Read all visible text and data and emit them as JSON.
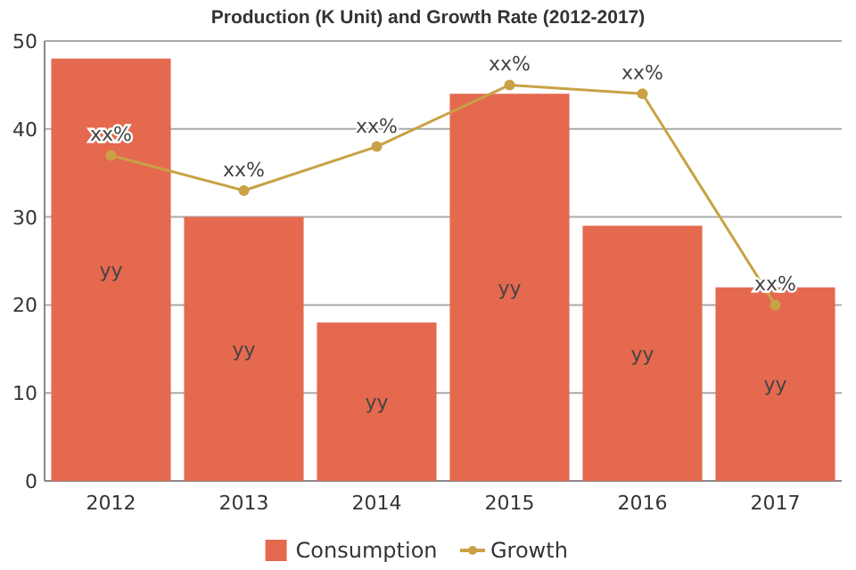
{
  "chart_data": {
    "type": "bar",
    "title": "Production (K Unit) and Growth Rate (2012-2017)",
    "categories": [
      "2012",
      "2013",
      "2014",
      "2015",
      "2016",
      "2017"
    ],
    "series": [
      {
        "name": "Consumption",
        "color": "#e5694f",
        "values": [
          48,
          30,
          18,
          44,
          29,
          22
        ],
        "value_labels": [
          "yy",
          "yy",
          "yy",
          "yy",
          "yy",
          "yy"
        ]
      },
      {
        "name": "Growth",
        "type": "line",
        "color": "#c9a245",
        "values": [
          37,
          33,
          38,
          45,
          44,
          20
        ],
        "value_labels": [
          "xx%",
          "xx%",
          "xx%",
          "xx%",
          "xx%",
          "xx%"
        ]
      }
    ],
    "ylim": [
      0,
      50
    ],
    "yticks": [
      0,
      10,
      20,
      30,
      40,
      50
    ],
    "grid": "y",
    "legend": "bottom",
    "marker": "circle"
  }
}
